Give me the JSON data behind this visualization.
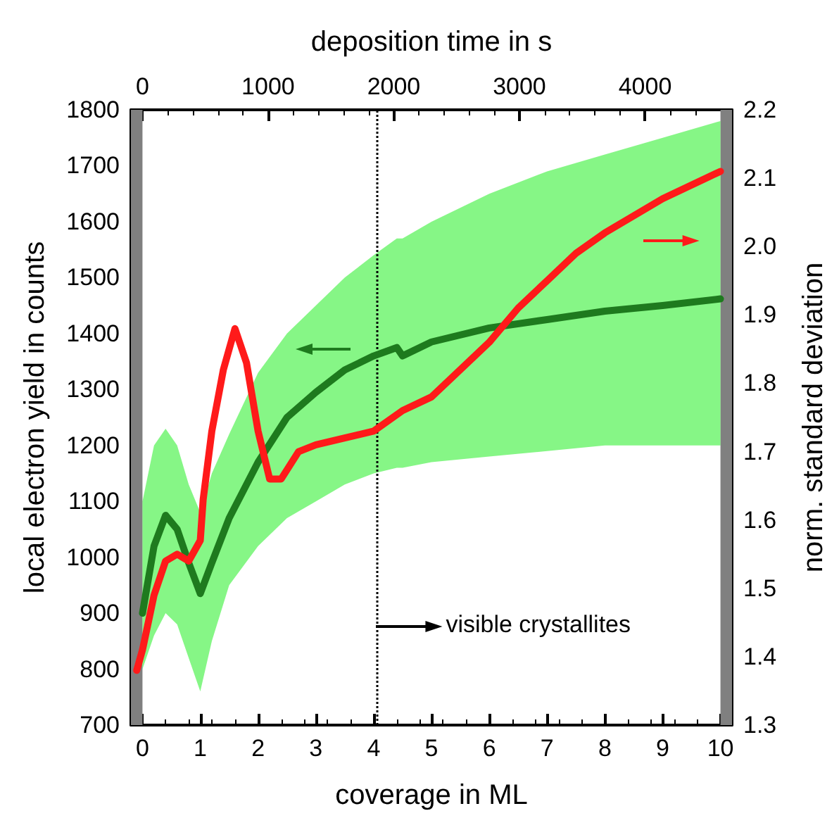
{
  "chart_data": {
    "type": "line",
    "xlabel": "coverage in ML",
    "x2label": "deposition time in s",
    "ylabel": "local electron yield in counts",
    "y2label": "norm. standard deviation",
    "xlim": [
      -0.2,
      10.2
    ],
    "xticks": [
      0,
      1,
      2,
      3,
      4,
      5,
      6,
      7,
      8,
      9,
      10
    ],
    "x2lim": [
      -92,
      4692
    ],
    "x2ticks": [
      0,
      1000,
      2000,
      3000,
      4000
    ],
    "ylim": [
      700,
      1800
    ],
    "yticks": [
      700,
      800,
      900,
      1000,
      1100,
      1200,
      1300,
      1400,
      1500,
      1600,
      1700,
      1800
    ],
    "y2lim": [
      1.3,
      2.2
    ],
    "y2ticks": [
      1.3,
      1.4,
      1.5,
      1.6,
      1.7,
      1.8,
      1.9,
      {
        "value": 2.0,
        "label": "2.0"
      },
      2.1,
      2.2
    ],
    "grid": false,
    "marker": "none",
    "line_style": "solid",
    "series": [
      {
        "color": "#1e7a1e",
        "x": [
          0,
          0.2,
          0.4,
          0.6,
          0.8,
          1.0,
          1.2,
          1.5,
          2.0,
          2.5,
          3.0,
          3.5,
          4.0,
          4.4,
          4.5,
          5,
          6,
          7,
          8,
          9,
          10
        ],
        "values": [
          900,
          1020,
          1075,
          1050,
          990,
          935,
          990,
          1070,
          1170,
          1250,
          1295,
          1335,
          1360,
          1375,
          1360,
          1385,
          1410,
          1425,
          1440,
          1450,
          1462
        ],
        "lower": [
          800,
          860,
          900,
          880,
          820,
          760,
          850,
          950,
          1020,
          1070,
          1100,
          1130,
          1150,
          1160,
          1160,
          1170,
          1180,
          1190,
          1200,
          1200,
          1200
        ],
        "upper": [
          1100,
          1200,
          1230,
          1200,
          1130,
          1080,
          1150,
          1220,
          1330,
          1400,
          1450,
          1500,
          1540,
          1570,
          1570,
          1600,
          1650,
          1690,
          1720,
          1750,
          1780
        ]
      },
      {
        "color": "#ff1a1a",
        "axis": "y2",
        "x": [
          -0.1,
          0,
          0.2,
          0.4,
          0.6,
          0.8,
          1.0,
          1.05,
          1.2,
          1.4,
          1.6,
          1.8,
          2.0,
          2.2,
          2.4,
          2.7,
          3.0,
          3.5,
          4.0,
          4.5,
          5,
          6,
          6.5,
          7,
          7.5,
          8,
          9,
          10
        ],
        "values": [
          1.38,
          1.41,
          1.49,
          1.54,
          1.55,
          1.54,
          1.57,
          1.63,
          1.73,
          1.82,
          1.88,
          1.83,
          1.73,
          1.66,
          1.66,
          1.7,
          1.71,
          1.72,
          1.73,
          1.76,
          1.78,
          1.86,
          1.91,
          1.95,
          1.99,
          2.02,
          2.07,
          2.11
        ]
      }
    ],
    "ref_lines": [
      {
        "axis": "x",
        "value": 4.05,
        "line_style": "dotted",
        "color": "#000000"
      }
    ],
    "bands": [
      {
        "axis": "x",
        "from": -0.2,
        "to": 0,
        "color": "#808080"
      },
      {
        "axis": "x",
        "from": 10,
        "to": 10.2,
        "color": "#808080"
      }
    ],
    "annotations": [
      {
        "text": "visible crystallites",
        "x": 4.05,
        "y": 876
      }
    ]
  }
}
